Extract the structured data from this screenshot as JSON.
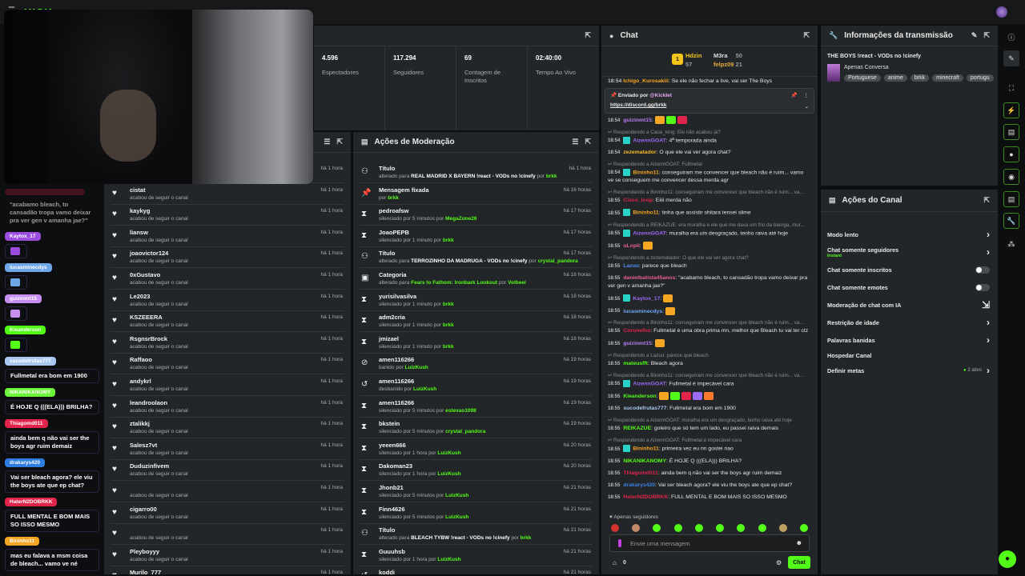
{
  "app": {
    "logo": "KICK",
    "logo_badge": "BETA"
  },
  "stats": {
    "items": [
      {
        "value": "4.596",
        "label": "Espectadores"
      },
      {
        "value": "117.294",
        "label": "Seguidores"
      },
      {
        "value": "69",
        "label": "Contagem de Inscritos"
      },
      {
        "value": "02:40:00",
        "label": "Tempo Ao Vivo"
      }
    ]
  },
  "followers": {
    "subtitle": "acabou de seguir o canal",
    "items": [
      {
        "name": "",
        "time": "há 1 hora"
      },
      {
        "name": "cistat",
        "time": "há 1 hora"
      },
      {
        "name": "kaykyg",
        "time": "há 1 hora"
      },
      {
        "name": "liansw",
        "time": "há 1 hora"
      },
      {
        "name": "joaovictor124",
        "time": "há 1 hora"
      },
      {
        "name": "0xGustavo",
        "time": "há 1 hora"
      },
      {
        "name": "Le2023",
        "time": "há 1 hora"
      },
      {
        "name": "KSZEEERA",
        "time": "há 1 hora"
      },
      {
        "name": "RsgnsrBrock",
        "time": "há 1 hora"
      },
      {
        "name": "Raffaoo",
        "time": "há 1 hora"
      },
      {
        "name": "andykrl",
        "time": "há 1 hora"
      },
      {
        "name": "leandroolaon",
        "time": "há 1 hora"
      },
      {
        "name": "ztalikkj",
        "time": "há 1 hora"
      },
      {
        "name": "Salesz7vt",
        "time": "há 1 hora"
      },
      {
        "name": "Duduzinfivem",
        "time": "há 1 hora"
      },
      {
        "name": "",
        "time": "há 1 hora"
      },
      {
        "name": "cigarro00",
        "time": "há 1 hora"
      },
      {
        "name": "",
        "time": "há 1 hora"
      },
      {
        "name": "Pleyboyyy",
        "time": "há 1 hora"
      },
      {
        "name": "Murilo_777",
        "time": "há 1 hora"
      }
    ]
  },
  "moderation": {
    "title": "Ações de Moderação",
    "items": [
      {
        "icon": "title",
        "name": "Título",
        "pre": "alterado para ",
        "bold": "REAL MADRID X BAYERN !react - VODs no !cinefy",
        "mid": " por ",
        "by": "brkk",
        "time": "há 1 hora"
      },
      {
        "icon": "pin",
        "name": "Mensagem fixada",
        "pre": "por ",
        "bold": "",
        "mid": "",
        "by": "brkk",
        "time": "há 16 horas"
      },
      {
        "icon": "timeout",
        "name": "pedroafsw",
        "pre": "silenciado por 5 minutos por ",
        "bold": "",
        "mid": "",
        "by": "MegaZone26",
        "time": "há 17 horas"
      },
      {
        "icon": "timeout",
        "name": "JoaoPEPB",
        "pre": "silenciado por 1 minuto por ",
        "bold": "",
        "mid": "",
        "by": "brkk",
        "time": "há 17 horas"
      },
      {
        "icon": "title",
        "name": "Título",
        "pre": "alterado para ",
        "bold": "TERROZINHO DA MADRUGA - VODs no !cinefy",
        "mid": " por ",
        "by": "crystal_pandora",
        "time": "há 17 horas"
      },
      {
        "icon": "category",
        "name": "Categoria",
        "pre": "alterado para ",
        "bold": "",
        "mid": "",
        "by": "Fears to Fathom: Ironbark Lookout",
        "by2": "Volbeel",
        "time": "há 18 horas"
      },
      {
        "icon": "timeout",
        "name": "yurisilvasilva",
        "pre": "silenciado por 1 minuto por ",
        "bold": "",
        "mid": "",
        "by": "brkk",
        "time": "há 18 horas"
      },
      {
        "icon": "timeout",
        "name": "adm2cria",
        "pre": "silenciado por 1 minuto por ",
        "bold": "",
        "mid": "",
        "by": "brkk",
        "time": "há 18 horas"
      },
      {
        "icon": "timeout",
        "name": "jmizael",
        "pre": "silenciado por 1 minuto por ",
        "bold": "",
        "mid": "",
        "by": "brkk",
        "time": "há 18 horas"
      },
      {
        "icon": "ban",
        "name": "amen116266",
        "pre": "banido por ",
        "bold": "",
        "mid": "",
        "by": "LuizKush",
        "time": "há 19 horas"
      },
      {
        "icon": "unban",
        "name": "amen116266",
        "pre": "desbanido por ",
        "bold": "",
        "mid": "",
        "by": "LuizKush",
        "time": "há 19 horas"
      },
      {
        "icon": "timeout",
        "name": "amen116266",
        "pre": "silenciado por 5 minutos por ",
        "bold": "",
        "mid": "",
        "by": "estevao1098",
        "time": "há 19 horas"
      },
      {
        "icon": "timeout",
        "name": "bkstein",
        "pre": "silenciado por 5 minutos por ",
        "bold": "",
        "mid": "",
        "by": "crystal_pandora",
        "time": "há 19 horas"
      },
      {
        "icon": "timeout",
        "name": "yeeen666",
        "pre": "silenciado por 1 hora por ",
        "bold": "",
        "mid": "",
        "by": "LuizKush",
        "time": "há 20 horas"
      },
      {
        "icon": "timeout",
        "name": "Dakoman23",
        "pre": "silenciado por 1 hora por ",
        "bold": "",
        "mid": "",
        "by": "LuizKush",
        "time": "há 20 horas"
      },
      {
        "icon": "timeout",
        "name": "Jhonb21",
        "pre": "silenciado por 5 minutos por ",
        "bold": "",
        "mid": "",
        "by": "LuizKush",
        "time": "há 21 horas"
      },
      {
        "icon": "timeout",
        "name": "Finn4626",
        "pre": "silenciado por 5 minutos por ",
        "bold": "",
        "mid": "",
        "by": "LuizKush",
        "time": "há 21 horas"
      },
      {
        "icon": "title",
        "name": "Título",
        "pre": "alterado para ",
        "bold": "BLEACH TYBW !react - VODs no !cinefy",
        "mid": " por ",
        "by": "brkk",
        "time": "há 21 horas"
      },
      {
        "icon": "timeout",
        "name": "Guuuhsb",
        "pre": "silenciado por 1 hora por ",
        "bold": "",
        "mid": "",
        "by": "LuizKush",
        "time": "há 21 horas"
      },
      {
        "icon": "unban",
        "name": "koddi",
        "pre": "",
        "bold": "",
        "mid": "",
        "by": "",
        "time": "há 21 horas"
      }
    ]
  },
  "chat": {
    "title": "Chat",
    "leaderboard": [
      {
        "rank": "1",
        "name": "Hdzin",
        "count": "57"
      },
      {
        "name": "M3ra",
        "count": "50"
      },
      {
        "name": "felpz09",
        "count": "21"
      }
    ],
    "pinned": {
      "label": "Enviado por",
      "user": "@Kicklet",
      "link": "https://discord.gg/brkk"
    },
    "top_partial": {
      "time": "18:54",
      "user": "Ichigo_Kurosakiii",
      "text": "Se ele não fechar a live, vai ser The Boys"
    },
    "messages": [
      {
        "time": "18:54",
        "user": "guizinmt15",
        "color": "#b77cf5",
        "text": "",
        "emotes": 3
      },
      {
        "reply": "Respondendo a Caua_king: Ele não acabou já?",
        "time": "18:54",
        "user": "AizennGOAT",
        "color": "#9b6cf5",
        "badge": true,
        "text": "4ª temporada ainda"
      },
      {
        "time": "18:54",
        "user": "zezematador",
        "color": "#f5b82c",
        "text": "O que ele vai ver agora chat?"
      },
      {
        "reply": "Respondendo a AizennGOAT: Fullmetal",
        "time": "18:54",
        "user": "Bininho11",
        "color": "#f5a623",
        "badge": true,
        "text": "conseguiram me convencer que bleach não é ruim... vamo ve se conseguem me convencer dessa merda agr"
      },
      {
        "reply": "Respondendo a Bininho11: conseguiram me convencer que bleach não é ruim... va...",
        "time": "18:55",
        "user": "Cisco_loop",
        "color": "#e0244c",
        "text": "Eiiii merda não"
      },
      {
        "time": "18:55",
        "user": "Bininho11",
        "color": "#f5a623",
        "badge": true,
        "text": "tinha que assistir shitara tensei slime"
      },
      {
        "reply": "Respondendo a REIKAZUE: era muralha e ele que me dava um frio da barriga, mur...",
        "time": "18:55",
        "user": "AizennGOAT",
        "color": "#9b6cf5",
        "badge": true,
        "text": "muralha era um desgraçado, tenho raiva até hoje"
      },
      {
        "time": "18:55",
        "user": "uLopii",
        "color": "#e85c9a",
        "text": "",
        "emotes": 1
      },
      {
        "reply": "Respondendo a zezematador: O que ele vai ver agora chat?",
        "time": "18:55",
        "user": "Lazuu",
        "color": "#4d8ff5",
        "text": "parece que bleach"
      },
      {
        "time": "18:55",
        "user": "danielbatista45anos",
        "color": "#e85c9a",
        "text": "\"acabamo bleach, to cansadão tropa vamo deixar pra ver gen v amanha jae?\""
      },
      {
        "time": "18:55",
        "user": "Kaytox_17",
        "color": "#9b6cf5",
        "badge": true,
        "text": "",
        "emotes": 1
      },
      {
        "time": "18:55",
        "user": "lucasminecdys",
        "color": "#6fa8f5",
        "text": "",
        "emotes": 1
      },
      {
        "reply": "Respondendo a Bininho11: conseguiram me convencer que bleach não é ruim... va...",
        "time": "18:55",
        "user": "Corunelho",
        "color": "#e0244c",
        "text": "Fullmetal é uma obra prima mn, melhor que Bleach tu vai ter ctz"
      },
      {
        "time": "18:55",
        "user": "guizinmt15",
        "color": "#b77cf5",
        "text": "",
        "emotes": 1
      },
      {
        "reply": "Respondendo a Lazuu: parece que bleach",
        "time": "18:55",
        "user": "mateusfft",
        "color": "#53fc18",
        "text": "Bleach agora"
      },
      {
        "reply": "Respondendo a Bininho11: conseguiram me convencer que bleach não é ruim... va...",
        "time": "18:55",
        "user": "AizennGOAT",
        "color": "#9b6cf5",
        "badge": true,
        "text": "Fullmetal é impecável cara"
      },
      {
        "time": "18:55",
        "user": "Kleanderson",
        "color": "#53fc18",
        "text": "",
        "emotes": 5
      },
      {
        "time": "18:55",
        "user": "sucodefrutas777",
        "color": "#a8c8f0",
        "text": "Fullmetal era bom em 1900"
      },
      {
        "reply": "Respondendo a AizennGOAT: muralha era um desgraçado, tenho raiva até hoje",
        "time": "18:55",
        "user": "REIKAZUE",
        "color": "#53fc18",
        "text": "goleiro que só tem um lado, eu passei raiva demais"
      },
      {
        "reply": "Respondendo a AizennGOAT: Fullmetal é impecável cara",
        "time": "18:55",
        "user": "Bininho11",
        "color": "#f5a623",
        "badge": true,
        "text": "primeira vez eu nn gostei nao"
      },
      {
        "time": "18:55",
        "user": "NIKANIKANOMY",
        "color": "#53fc18",
        "text": "É HOJE Q (((ELA))) BRILHA?"
      },
      {
        "time": "18:55",
        "user": "Thiagomd011",
        "color": "#e0244c",
        "text": "ainda bem q não vai ser the boys agr ruim demaiz"
      },
      {
        "time": "18:55",
        "user": "drakarys420",
        "color": "#3a7fe0",
        "text": "Vai ser bleach agora? ele viu the boys ate que ep chat?"
      },
      {
        "time": "18:55",
        "user": "HaterN2DOBRKK",
        "color": "#e0244c",
        "text": "FULL MENTAL E BOM MAIS SO ISSO MESMO"
      },
      {
        "time": "18:55",
        "user": "Bininho11",
        "color": "#f5a623",
        "badge": true,
        "text": "mas eu falava a msm coisa de bleach... vamo ve né"
      }
    ],
    "followers_only": "Apenas seguidores",
    "input_placeholder": "Envie uma mensagem",
    "points": "0",
    "send_label": "Chat"
  },
  "stream_info": {
    "title": "Informações da transmissão",
    "stream_title": "THE BOYS !react - VODs no !cinefy",
    "category": "Apenas Conversa",
    "tags": [
      "Portuguese",
      "anime",
      "brkk",
      "minecraft",
      "portugu"
    ]
  },
  "channel_actions": {
    "title": "Ações do Canal",
    "items": [
      {
        "label": "Modo lento",
        "control": "chevron"
      },
      {
        "label": "Chat somente seguidores",
        "sub": "Instant",
        "control": "chevron"
      },
      {
        "label": "Chat somente inscritos",
        "control": "toggle",
        "on": false
      },
      {
        "label": "Chat somente emotes",
        "control": "toggle",
        "on": false
      },
      {
        "label": "Moderação de chat com IA",
        "control": "external"
      },
      {
        "label": "Restrição de idade",
        "control": "chevron"
      },
      {
        "label": "Palavras banidas",
        "control": "chevron"
      },
      {
        "label": "Hospedar Canal",
        "control": "none"
      },
      {
        "label": "Definir metas",
        "control": "chevron",
        "status": "2 ativo"
      }
    ]
  },
  "overlay_chat": [
    {
      "name": "",
      "color": "#7a1530",
      "text": "\"acabamo bleach, to cansadão tropa vamo deixar pra ver gen v amanha jae?\""
    },
    {
      "name": "Kaytox_17",
      "color": "#9b4de0",
      "text": ""
    },
    {
      "name": "lucasminecdys",
      "color": "#6fa8e8",
      "text": ""
    },
    {
      "name": "guizinmt15",
      "color": "#c58ef0",
      "text": ""
    },
    {
      "name": "Kleanderson",
      "color": "#53fc18",
      "text": ""
    },
    {
      "name": "sucodefrutas777",
      "color": "#a8c8f0",
      "text": "Fullmetal era bom em 1900"
    },
    {
      "name": "NIKANIKANOMY",
      "color": "#6cf53a",
      "text": "É HOJE Q (((ELA))) BRILHA?"
    },
    {
      "name": "Thiagomd011",
      "color": "#e0244c",
      "text": "ainda bem q não vai ser the boys agr ruim demaiz"
    },
    {
      "name": "drakarys420",
      "color": "#2f7de0",
      "text": "Vai ser bleach agora? ele viu the boys ate que ep chat?"
    },
    {
      "name": "HaterN2DOBRKK",
      "color": "#e0244c",
      "text": "FULL MENTAL E BOM MAIS SO ISSO MESMO"
    },
    {
      "name": "Bininho11",
      "color": "#f5a623",
      "text": "mas eu falava a msm coisa de bleach... vamo ve né"
    }
  ],
  "colors": {
    "accent": "#53fc18",
    "panel": "#232628",
    "background": "#0d0e0f"
  }
}
